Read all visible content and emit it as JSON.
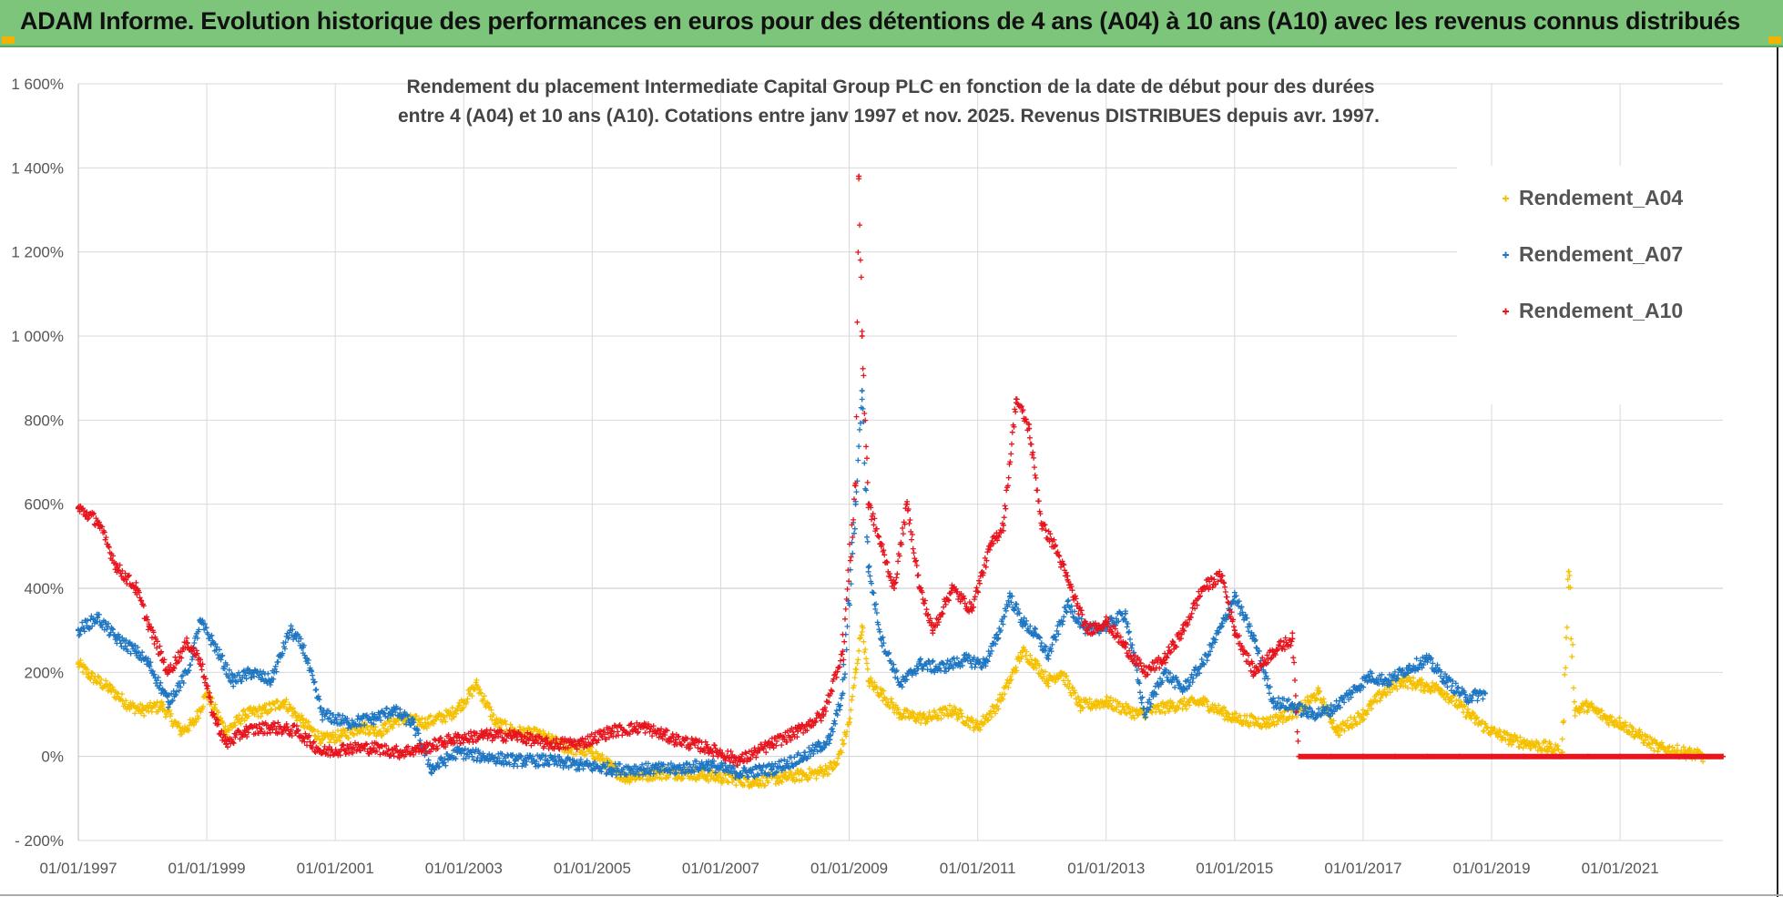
{
  "banner": {
    "text": "ADAM Informe. Evolution historique des performances en euros pour des détentions de 4 ans (A04) à 10 ans (A10) avec les revenus connus distribués"
  },
  "colors": {
    "banner_bg": "#7dc57a",
    "A04": "#f5c000",
    "A07": "#1f77c4",
    "A10": "#e8141e",
    "grid": "#d9d9d9"
  },
  "chart_data": {
    "type": "scatter",
    "title_line1": "Rendement du placement Intermediate Capital Group PLC en fonction de la date de début pour des durées",
    "title_line2": "entre 4 (A04) et 10 ans (A10).  Cotations entre janv 1997 et nov. 2025. Revenus DISTRIBUES depuis avr. 1997.",
    "xlabel": "",
    "ylabel": "",
    "ylim": [
      -200,
      1600
    ],
    "xlim": [
      1997.0,
      2022.6
    ],
    "y_ticks": [
      -200,
      0,
      200,
      400,
      600,
      800,
      1000,
      1200,
      1400,
      1600
    ],
    "y_tick_labels": [
      "- 200%",
      "0%",
      "200%",
      "400%",
      "600%",
      "800%",
      "1 000%",
      "1 200%",
      "1 400%",
      "1 600%"
    ],
    "x_ticks": [
      1997,
      1999,
      2001,
      2003,
      2005,
      2007,
      2009,
      2011,
      2013,
      2015,
      2017,
      2019,
      2021
    ],
    "x_tick_labels": [
      "01/01/1997",
      "01/01/1999",
      "01/01/2001",
      "01/01/2003",
      "01/01/2005",
      "01/01/2007",
      "01/01/2009",
      "01/01/2011",
      "01/01/2013",
      "01/01/2015",
      "01/01/2017",
      "01/01/2019",
      "01/01/2021"
    ],
    "legend_position": "top-right",
    "series": [
      {
        "name": "Rendement_A04",
        "color": "#f5c000",
        "x": [
          1997.0,
          1997.2,
          1997.5,
          1997.8,
          1998.0,
          1998.3,
          1998.6,
          1998.8,
          1999.0,
          1999.3,
          1999.6,
          1999.9,
          2000.2,
          2000.5,
          2000.8,
          2001.1,
          2001.4,
          2001.7,
          2002.0,
          2002.4,
          2002.8,
          2003.0,
          2003.2,
          2003.5,
          2003.8,
          2004.2,
          2004.6,
          2005.0,
          2005.5,
          2006.0,
          2006.5,
          2007.0,
          2007.5,
          2008.0,
          2008.5,
          2008.8,
          2009.0,
          2009.1,
          2009.2,
          2009.3,
          2009.5,
          2009.8,
          2010.2,
          2010.6,
          2011.0,
          2011.3,
          2011.5,
          2011.7,
          2011.9,
          2012.1,
          2012.3,
          2012.6,
          2013.0,
          2013.5,
          2014.0,
          2014.5,
          2015.0,
          2015.5,
          2016.0,
          2016.3,
          2016.6,
          2017.0,
          2017.3,
          2017.6,
          2017.9,
          2018.2,
          2018.5,
          2018.8,
          2019.0,
          2019.3,
          2019.6,
          2019.9,
          2020.1,
          2020.2,
          2020.3,
          2020.5,
          2020.8,
          2021.0,
          2021.3,
          2021.6,
          2022.0,
          2022.3,
          2022.6
        ],
        "values": [
          220,
          190,
          160,
          120,
          110,
          120,
          60,
          80,
          150,
          60,
          100,
          110,
          130,
          80,
          40,
          50,
          70,
          60,
          90,
          80,
          100,
          130,
          170,
          80,
          60,
          50,
          20,
          10,
          -50,
          -40,
          -40,
          -50,
          -60,
          -50,
          -40,
          -20,
          80,
          200,
          310,
          180,
          150,
          100,
          90,
          110,
          70,
          120,
          180,
          250,
          220,
          180,
          200,
          120,
          130,
          100,
          120,
          130,
          90,
          80,
          110,
          150,
          60,
          100,
          150,
          180,
          170,
          160,
          120,
          80,
          60,
          40,
          30,
          20,
          10,
          440,
          110,
          120,
          90,
          80,
          50,
          20,
          10,
          0,
          0
        ]
      },
      {
        "name": "Rendement_A07",
        "color": "#1f77c4",
        "x": [
          1997.0,
          1997.3,
          1997.6,
          1997.9,
          1998.1,
          1998.4,
          1998.7,
          1998.9,
          1999.1,
          1999.4,
          1999.7,
          2000.0,
          2000.3,
          2000.5,
          2000.8,
          2001.2,
          2001.6,
          2001.9,
          2002.2,
          2002.5,
          2002.9,
          2003.3,
          2003.8,
          2004.3,
          2004.8,
          2005.3,
          2005.8,
          2006.3,
          2006.8,
          2007.3,
          2007.8,
          2008.3,
          2008.7,
          2008.9,
          2009.1,
          2009.2,
          2009.3,
          2009.5,
          2009.8,
          2010.1,
          2010.4,
          2010.8,
          2011.1,
          2011.3,
          2011.5,
          2011.7,
          2011.9,
          2012.1,
          2012.4,
          2012.7,
          2013.0,
          2013.3,
          2013.6,
          2013.9,
          2014.2,
          2014.5,
          2014.8,
          2015.0,
          2015.3,
          2015.6,
          2015.9,
          2016.2,
          2016.5,
          2016.8,
          2017.1,
          2017.4,
          2017.7,
          2018.0,
          2018.3,
          2018.6,
          2018.9
        ],
        "values": [
          300,
          330,
          280,
          250,
          220,
          130,
          200,
          320,
          270,
          180,
          200,
          180,
          300,
          260,
          100,
          80,
          90,
          110,
          80,
          -30,
          10,
          0,
          -10,
          -10,
          -20,
          -30,
          -30,
          -30,
          -20,
          -40,
          -30,
          0,
          40,
          150,
          600,
          870,
          450,
          280,
          170,
          220,
          210,
          230,
          220,
          280,
          380,
          320,
          290,
          240,
          360,
          300,
          310,
          340,
          100,
          200,
          160,
          220,
          310,
          380,
          280,
          130,
          120,
          100,
          110,
          150,
          190,
          180,
          210,
          230,
          180,
          140,
          150
        ]
      },
      {
        "name": "Rendement_A10",
        "color": "#e8141e",
        "x": [
          1997.0,
          1997.3,
          1997.6,
          1997.9,
          1998.1,
          1998.4,
          1998.7,
          1998.9,
          1999.1,
          1999.3,
          1999.6,
          2000.0,
          2000.4,
          2000.8,
          2001.2,
          2001.6,
          2002.0,
          2002.4,
          2002.8,
          2003.3,
          2003.8,
          2004.3,
          2004.8,
          2005.3,
          2005.8,
          2006.3,
          2006.8,
          2007.3,
          2007.8,
          2008.2,
          2008.6,
          2008.9,
          2009.1,
          2009.15,
          2009.2,
          2009.3,
          2009.5,
          2009.7,
          2009.9,
          2010.1,
          2010.3,
          2010.6,
          2010.9,
          2011.2,
          2011.4,
          2011.6,
          2011.8,
          2012.0,
          2012.2,
          2012.4,
          2012.7,
          2013.0,
          2013.3,
          2013.6,
          2013.9,
          2014.2,
          2014.5,
          2014.8,
          2015.0,
          2015.3,
          2015.6,
          2015.9,
          2016.0,
          2016.5,
          2017.0,
          2017.5,
          2018.0,
          2018.5,
          2019.0,
          2019.5,
          2020.0,
          2020.5,
          2021.0,
          2021.5,
          2022.0,
          2022.6
        ],
        "values": [
          590,
          560,
          450,
          400,
          310,
          200,
          270,
          230,
          100,
          30,
          60,
          70,
          60,
          10,
          20,
          20,
          10,
          20,
          40,
          50,
          50,
          30,
          30,
          60,
          70,
          40,
          20,
          -10,
          30,
          60,
          100,
          250,
          650,
          1380,
          1000,
          600,
          500,
          400,
          600,
          400,
          300,
          400,
          350,
          500,
          550,
          850,
          780,
          550,
          500,
          420,
          300,
          320,
          260,
          200,
          230,
          300,
          400,
          430,
          300,
          200,
          250,
          280,
          0,
          0,
          0,
          0,
          0,
          0,
          0,
          0,
          0,
          0,
          0,
          0,
          0,
          0
        ]
      }
    ]
  }
}
